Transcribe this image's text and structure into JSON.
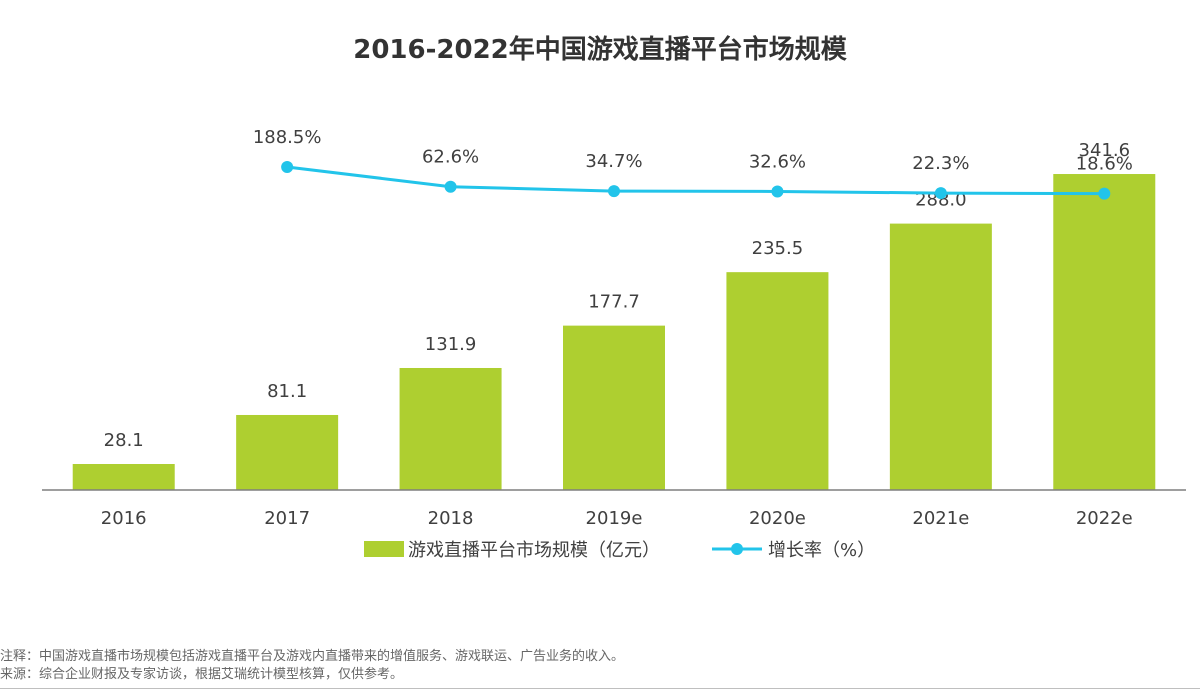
{
  "chart_data": {
    "type": "bar",
    "title": "2016-2022年中国游戏直播平台市场规模",
    "categories": [
      "2016",
      "2017",
      "2018",
      "2019e",
      "2020e",
      "2021e",
      "2022e"
    ],
    "series": [
      {
        "name": "游戏直播平台市场规模（亿元）",
        "type": "bar",
        "values": [
          28.1,
          81.1,
          131.9,
          177.7,
          235.5,
          288.0,
          341.6
        ],
        "labels": [
          "28.1",
          "81.1",
          "131.9",
          "177.7",
          "235.5",
          "288.0",
          "341.6"
        ]
      },
      {
        "name": "增长率（%）",
        "type": "line",
        "values": [
          null,
          188.5,
          62.6,
          34.7,
          32.6,
          22.3,
          18.6
        ],
        "labels": [
          null,
          "188.5%",
          "62.6%",
          "34.7%",
          "32.6%",
          "22.3%",
          "18.6%"
        ]
      }
    ],
    "xlabel": "",
    "ylabel": "",
    "ylim": [
      0,
      400
    ],
    "grid": false,
    "legend": "bottom-center"
  },
  "colors": {
    "bar": "#aecf30",
    "line": "#22c4ea",
    "axis": "#7f7f7f",
    "text": "#404040"
  },
  "notes": {
    "note": "注释：中国游戏直播市场规模包括游戏直播平台及游戏内直播带来的增值服务、游戏联运、广告业务的收入。",
    "source": "来源：综合企业财报及专家访谈，根据艾瑞统计模型核算，仅供参考。"
  }
}
